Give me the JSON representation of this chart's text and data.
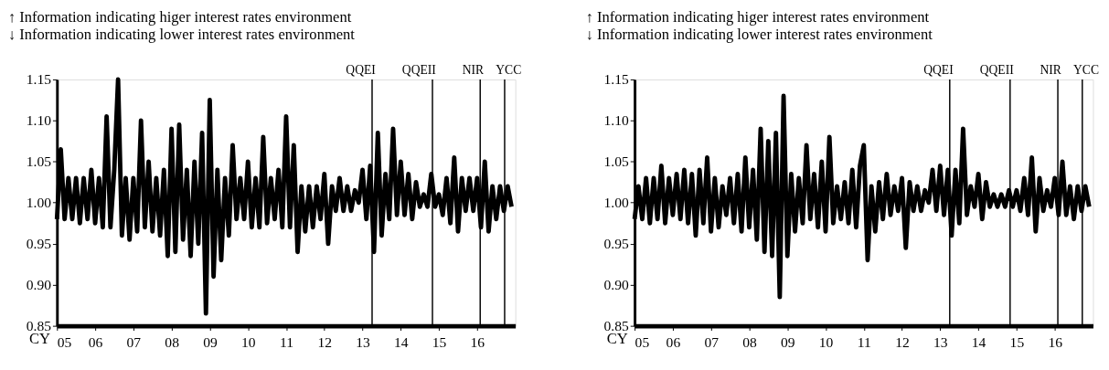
{
  "chart_data": [
    {
      "type": "line",
      "title": "↑ Information indicating higer interest rates environment",
      "subtitle": "↓ Information indicating lower interest rates environment",
      "xlabel": "CY",
      "x": [
        2005.0,
        2005.1,
        2005.2,
        2005.3,
        2005.4,
        2005.5,
        2005.6,
        2005.7,
        2005.8,
        2005.9,
        2006.0,
        2006.1,
        2006.2,
        2006.3,
        2006.4,
        2006.5,
        2006.6,
        2006.7,
        2006.8,
        2006.9,
        2007.0,
        2007.1,
        2007.2,
        2007.3,
        2007.4,
        2007.5,
        2007.6,
        2007.7,
        2007.8,
        2007.9,
        2008.0,
        2008.1,
        2008.2,
        2008.3,
        2008.4,
        2008.5,
        2008.6,
        2008.7,
        2008.8,
        2008.9,
        2009.0,
        2009.1,
        2009.2,
        2009.3,
        2009.4,
        2009.5,
        2009.6,
        2009.7,
        2009.8,
        2009.9,
        2010.0,
        2010.1,
        2010.2,
        2010.3,
        2010.4,
        2010.5,
        2010.6,
        2010.7,
        2010.8,
        2010.9,
        2011.0,
        2011.1,
        2011.2,
        2011.3,
        2011.4,
        2011.5,
        2011.6,
        2011.7,
        2011.8,
        2011.9,
        2012.0,
        2012.1,
        2012.2,
        2012.3,
        2012.4,
        2012.5,
        2012.6,
        2012.7,
        2012.8,
        2012.9,
        2013.0,
        2013.1,
        2013.2,
        2013.3,
        2013.4,
        2013.5,
        2013.6,
        2013.7,
        2013.8,
        2013.9,
        2014.0,
        2014.1,
        2014.2,
        2014.3,
        2014.4,
        2014.5,
        2014.6,
        2014.7,
        2014.8,
        2014.9,
        2015.0,
        2015.1,
        2015.2,
        2015.3,
        2015.4,
        2015.5,
        2015.6,
        2015.7,
        2015.8,
        2015.9,
        2016.0,
        2016.1,
        2016.2,
        2016.3,
        2016.4,
        2016.5,
        2016.6,
        2016.7,
        2016.8,
        2016.9
      ],
      "series": [
        {
          "color": "#000000",
          "values": [
            0.98,
            1.065,
            0.98,
            1.03,
            0.98,
            1.03,
            0.975,
            1.03,
            0.98,
            1.04,
            0.975,
            1.03,
            0.97,
            1.105,
            0.97,
            1.04,
            1.15,
            0.96,
            1.03,
            0.955,
            1.03,
            0.965,
            1.1,
            0.97,
            1.05,
            0.965,
            1.03,
            0.96,
            1.04,
            0.935,
            1.09,
            0.94,
            1.095,
            0.955,
            1.04,
            0.935,
            1.05,
            0.95,
            1.085,
            0.865,
            1.125,
            0.91,
            1.04,
            0.93,
            1.03,
            0.96,
            1.07,
            0.98,
            1.03,
            0.98,
            1.05,
            0.97,
            1.03,
            0.97,
            1.08,
            0.975,
            1.03,
            0.98,
            1.04,
            0.97,
            1.105,
            0.97,
            1.07,
            0.94,
            1.02,
            0.965,
            1.02,
            0.97,
            1.02,
            0.98,
            1.035,
            0.95,
            1.02,
            0.99,
            1.03,
            0.99,
            1.02,
            0.99,
            1.015,
            1.0,
            1.04,
            0.98,
            1.045,
            0.94,
            1.085,
            0.96,
            1.035,
            0.98,
            1.09,
            0.985,
            1.05,
            0.985,
            1.035,
            0.98,
            1.025,
            0.995,
            1.01,
            0.995,
            1.035,
            0.995,
            1.01,
            0.985,
            1.03,
            0.975,
            1.055,
            0.965,
            1.03,
            0.99,
            1.03,
            0.99,
            1.03,
            0.97,
            1.05,
            0.965,
            1.02,
            0.98,
            1.02,
            0.99,
            1.02,
            0.995
          ]
        }
      ],
      "xlim": [
        2005,
        2017
      ],
      "xticks": [
        {
          "value": 2005,
          "label": "05"
        },
        {
          "value": 2006,
          "label": "06"
        },
        {
          "value": 2007,
          "label": "07"
        },
        {
          "value": 2008,
          "label": "08"
        },
        {
          "value": 2009,
          "label": "09"
        },
        {
          "value": 2010,
          "label": "10"
        },
        {
          "value": 2011,
          "label": "11"
        },
        {
          "value": 2012,
          "label": "12"
        },
        {
          "value": 2013,
          "label": "13"
        },
        {
          "value": 2014,
          "label": "14"
        },
        {
          "value": 2015,
          "label": "15"
        },
        {
          "value": 2016,
          "label": "16"
        }
      ],
      "ylim": [
        0.85,
        1.15
      ],
      "yticks": [
        {
          "value": 0.85,
          "label": "0.85"
        },
        {
          "value": 0.9,
          "label": "0.90"
        },
        {
          "value": 0.95,
          "label": "0.95"
        },
        {
          "value": 1.0,
          "label": "1.00"
        },
        {
          "value": 1.05,
          "label": "1.05"
        },
        {
          "value": 1.1,
          "label": "1.10"
        },
        {
          "value": 1.15,
          "label": "1.15"
        }
      ],
      "ref_lines": [
        {
          "axis": "x",
          "value": 2013.25,
          "label": "QQEI"
        },
        {
          "axis": "x",
          "value": 2014.83,
          "label": "QQEII"
        },
        {
          "axis": "x",
          "value": 2016.08,
          "label": "NIR"
        },
        {
          "axis": "x",
          "value": 2016.72,
          "label": "YCC"
        }
      ],
      "grid": false,
      "marker": "none",
      "line_style": "solid"
    },
    {
      "type": "line",
      "title": "↑ Information indicating higer interest rates environment",
      "subtitle": "↓ Information indicating lower interest rates environment",
      "xlabel": "CY",
      "x": [
        2005.0,
        2005.1,
        2005.2,
        2005.3,
        2005.4,
        2005.5,
        2005.6,
        2005.7,
        2005.8,
        2005.9,
        2006.0,
        2006.1,
        2006.2,
        2006.3,
        2006.4,
        2006.5,
        2006.6,
        2006.7,
        2006.8,
        2006.9,
        2007.0,
        2007.1,
        2007.2,
        2007.3,
        2007.4,
        2007.5,
        2007.6,
        2007.7,
        2007.8,
        2007.9,
        2008.0,
        2008.1,
        2008.2,
        2008.3,
        2008.4,
        2008.5,
        2008.6,
        2008.7,
        2008.8,
        2008.9,
        2009.0,
        2009.1,
        2009.2,
        2009.3,
        2009.4,
        2009.5,
        2009.6,
        2009.7,
        2009.8,
        2009.9,
        2010.0,
        2010.1,
        2010.2,
        2010.3,
        2010.4,
        2010.5,
        2010.6,
        2010.7,
        2010.8,
        2010.9,
        2011.0,
        2011.1,
        2011.2,
        2011.3,
        2011.4,
        2011.5,
        2011.6,
        2011.7,
        2011.8,
        2011.9,
        2012.0,
        2012.1,
        2012.2,
        2012.3,
        2012.4,
        2012.5,
        2012.6,
        2012.7,
        2012.8,
        2012.9,
        2013.0,
        2013.1,
        2013.2,
        2013.3,
        2013.4,
        2013.5,
        2013.6,
        2013.7,
        2013.8,
        2013.9,
        2014.0,
        2014.1,
        2014.2,
        2014.3,
        2014.4,
        2014.5,
        2014.6,
        2014.7,
        2014.8,
        2014.9,
        2015.0,
        2015.1,
        2015.2,
        2015.3,
        2015.4,
        2015.5,
        2015.6,
        2015.7,
        2015.8,
        2015.9,
        2016.0,
        2016.1,
        2016.2,
        2016.3,
        2016.4,
        2016.5,
        2016.6,
        2016.7,
        2016.8,
        2016.9
      ],
      "series": [
        {
          "color": "#000000",
          "values": [
            0.98,
            1.02,
            0.98,
            1.03,
            0.975,
            1.03,
            0.98,
            1.045,
            0.975,
            1.03,
            0.985,
            1.035,
            0.98,
            1.04,
            0.975,
            1.035,
            0.96,
            1.04,
            0.975,
            1.055,
            0.965,
            1.03,
            0.97,
            1.02,
            0.985,
            1.03,
            0.975,
            1.035,
            0.965,
            1.055,
            0.97,
            1.04,
            0.955,
            1.09,
            0.94,
            1.075,
            0.935,
            1.085,
            0.885,
            1.13,
            0.935,
            1.035,
            0.965,
            1.03,
            0.975,
            1.07,
            0.98,
            1.035,
            0.97,
            1.05,
            0.965,
            1.08,
            0.975,
            1.02,
            0.98,
            1.025,
            0.975,
            1.04,
            0.97,
            1.045,
            1.07,
            0.93,
            1.02,
            0.965,
            1.025,
            0.98,
            1.035,
            0.985,
            1.02,
            0.99,
            1.03,
            0.945,
            1.025,
            0.99,
            1.02,
            0.99,
            1.015,
            1.0,
            1.04,
            0.99,
            1.045,
            0.985,
            1.04,
            0.96,
            1.04,
            0.975,
            1.09,
            0.985,
            1.02,
            0.995,
            1.035,
            0.98,
            1.025,
            0.995,
            1.01,
            0.995,
            1.01,
            0.995,
            1.015,
            0.995,
            1.015,
            0.99,
            1.03,
            0.985,
            1.055,
            0.965,
            1.03,
            0.99,
            1.015,
            0.995,
            1.03,
            0.985,
            1.05,
            0.985,
            1.02,
            0.98,
            1.02,
            0.99,
            1.02,
            0.995
          ]
        }
      ],
      "xlim": [
        2005,
        2017
      ],
      "xticks": [
        {
          "value": 2005,
          "label": "05"
        },
        {
          "value": 2006,
          "label": "06"
        },
        {
          "value": 2007,
          "label": "07"
        },
        {
          "value": 2008,
          "label": "08"
        },
        {
          "value": 2009,
          "label": "09"
        },
        {
          "value": 2010,
          "label": "10"
        },
        {
          "value": 2011,
          "label": "11"
        },
        {
          "value": 2012,
          "label": "12"
        },
        {
          "value": 2013,
          "label": "13"
        },
        {
          "value": 2014,
          "label": "14"
        },
        {
          "value": 2015,
          "label": "15"
        },
        {
          "value": 2016,
          "label": "16"
        }
      ],
      "ylim": [
        0.85,
        1.15
      ],
      "yticks": [
        {
          "value": 0.85,
          "label": "0.85"
        },
        {
          "value": 0.9,
          "label": "0.90"
        },
        {
          "value": 0.95,
          "label": "0.95"
        },
        {
          "value": 1.0,
          "label": "1.00"
        },
        {
          "value": 1.05,
          "label": "1.05"
        },
        {
          "value": 1.1,
          "label": "1.10"
        },
        {
          "value": 1.15,
          "label": "1.15"
        }
      ],
      "ref_lines": [
        {
          "axis": "x",
          "value": 2013.25,
          "label": "QQEI"
        },
        {
          "axis": "x",
          "value": 2014.83,
          "label": "QQEII"
        },
        {
          "axis": "x",
          "value": 2016.08,
          "label": "NIR"
        },
        {
          "axis": "x",
          "value": 2016.72,
          "label": "YCC"
        }
      ],
      "grid": false,
      "marker": "none",
      "line_style": "solid"
    }
  ]
}
